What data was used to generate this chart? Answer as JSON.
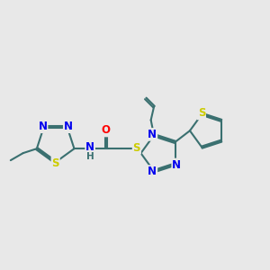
{
  "background_color": "#e8e8e8",
  "bond_color": "#3a7070",
  "bond_width": 1.5,
  "atom_colors": {
    "N": "#0000ee",
    "S": "#cccc00",
    "O": "#ff0000",
    "C": "#3a7070",
    "H": "#3a7070"
  },
  "font_size": 8.5,
  "figsize": [
    3.0,
    3.0
  ],
  "dpi": 100
}
